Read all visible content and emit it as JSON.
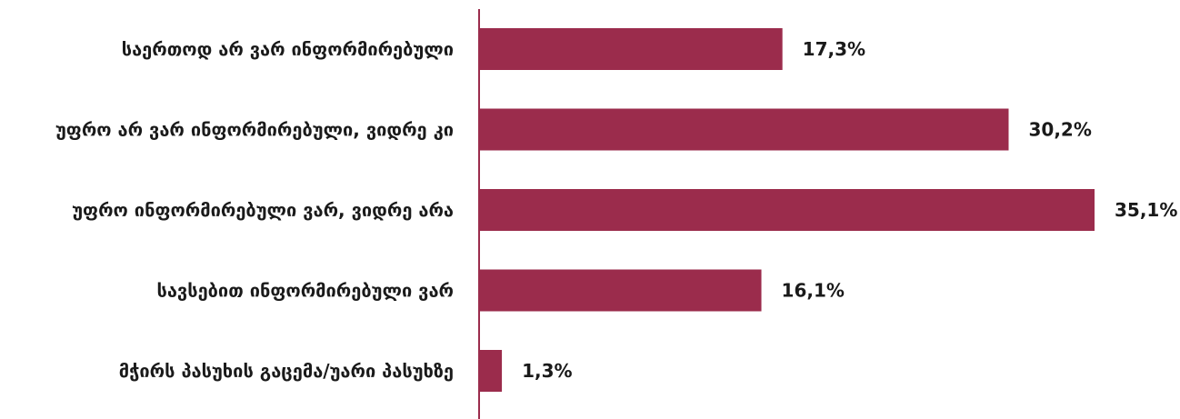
{
  "chart_data": {
    "type": "bar",
    "orientation": "horizontal",
    "categories": [
      "საერთოდ არ ვარ ინფორმირებული",
      "უფრო არ ვარ ინფორმირებული, ვიდრე კი",
      "უფრო ინფორმირებული ვარ, ვიდრე არა",
      "სავსებით ინფორმირებული ვარ",
      "მჭირს პასუხის გაცემა/უარი პასუხზე"
    ],
    "values": [
      17.3,
      30.2,
      35.1,
      16.1,
      1.3
    ],
    "value_labels": [
      "17,3%",
      "30,2%",
      "35,1%",
      "16,1%",
      "1,3%"
    ],
    "xlim": [
      0,
      40
    ],
    "grid": false,
    "legend": "none",
    "bar_color": "#9b2c4c",
    "axis_color": "#9b2c4c"
  }
}
